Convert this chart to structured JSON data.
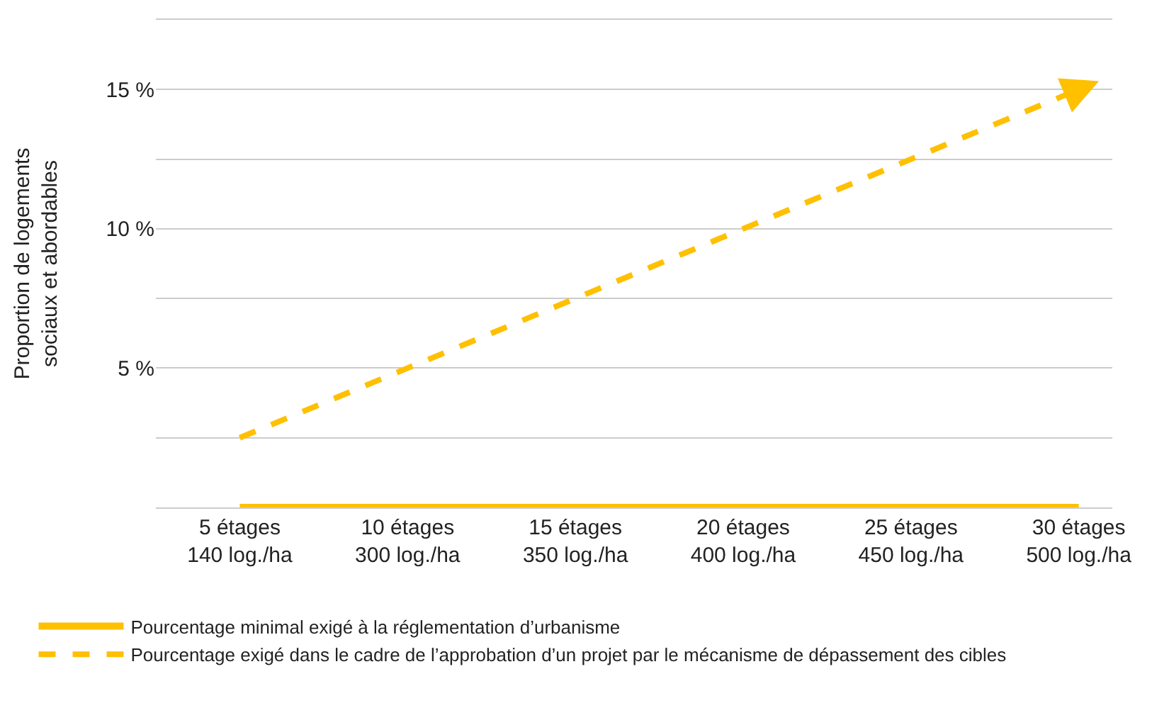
{
  "chart_data": {
    "type": "line",
    "ylabel": "Proportion de logements\nsociaux et abordables",
    "categories": [
      "5 étages\n140 log./ha",
      "10 étages\n300 log./ha",
      "15 étages\n350 log./ha",
      "20 étages\n400 log./ha",
      "25 étages\n450 log./ha",
      "30 étages\n500 log./ha"
    ],
    "ylim": [
      0,
      17.5
    ],
    "yticks": [
      {
        "value": 2.5,
        "label": null
      },
      {
        "value": 5,
        "label": "5 %"
      },
      {
        "value": 7.5,
        "label": null
      },
      {
        "value": 10,
        "label": "10 %"
      },
      {
        "value": 12.5,
        "label": null
      },
      {
        "value": 15,
        "label": "15 %"
      },
      {
        "value": 17.5,
        "label": null
      }
    ],
    "grid": "y",
    "legend": "bottom",
    "series": [
      {
        "name": "Pourcentage minimal exigé à la réglementation d’urbanisme",
        "color": "#ffc000",
        "line_style": "solid",
        "values": [
          0,
          0,
          0,
          0,
          0,
          0
        ]
      },
      {
        "name": "Pourcentage exigé dans le cadre de l’approbation d’un projet par le mécanisme de dépassement des cibles",
        "color": "#ffc000",
        "line_style": "dashed",
        "values": [
          2.5,
          5,
          7.5,
          10,
          12.5,
          15
        ]
      }
    ]
  }
}
